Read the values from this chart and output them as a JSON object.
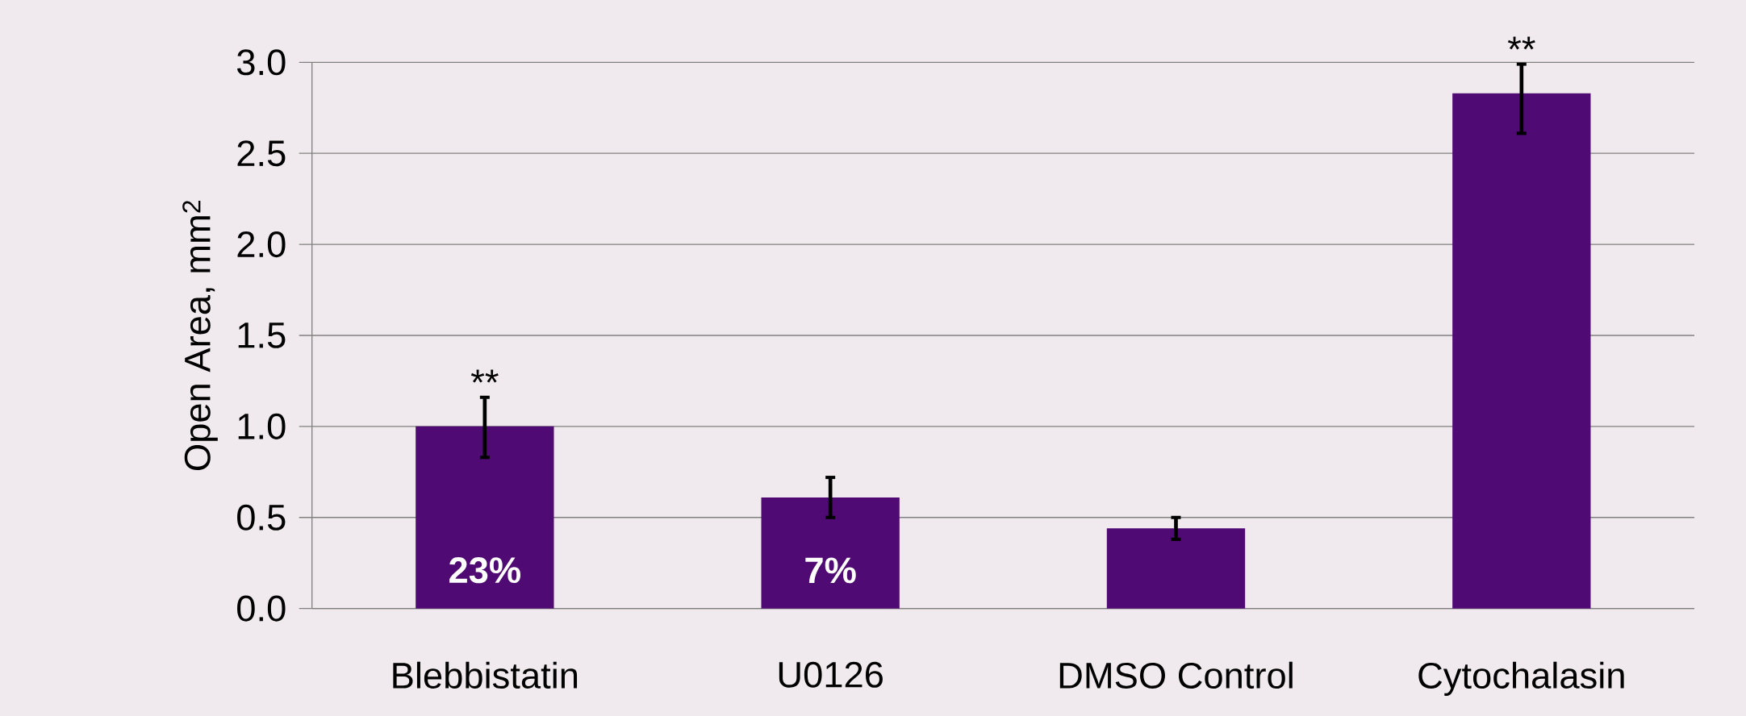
{
  "chart_data": {
    "type": "bar",
    "ylabel": "Open Area, mm$^{2}$",
    "categories": [
      "Blebbistatin",
      "U0126",
      "DMSO Control",
      "Cytochalasin"
    ],
    "values": [
      1.0,
      0.61,
      0.44,
      2.83
    ],
    "errors": [
      [
        0.83,
        1.16
      ],
      [
        0.5,
        0.72
      ],
      [
        0.38,
        0.5
      ],
      [
        2.61,
        2.99
      ]
    ],
    "color": "#4f0a73",
    "ylim": [
      0,
      3
    ],
    "yticks": [
      {
        "value": 0,
        "label": "0.0"
      },
      {
        "value": 0.5,
        "label": "0.5"
      },
      {
        "value": 1,
        "label": "1.0"
      },
      {
        "value": 1.5,
        "label": "1.5"
      },
      {
        "value": 2,
        "label": "2.0"
      },
      {
        "value": 2.5,
        "label": "2.5"
      },
      {
        "value": 3,
        "label": "3.0"
      }
    ],
    "grid": "y",
    "annotations": [
      "**",
      "**",
      "23%",
      "7%"
    ]
  }
}
